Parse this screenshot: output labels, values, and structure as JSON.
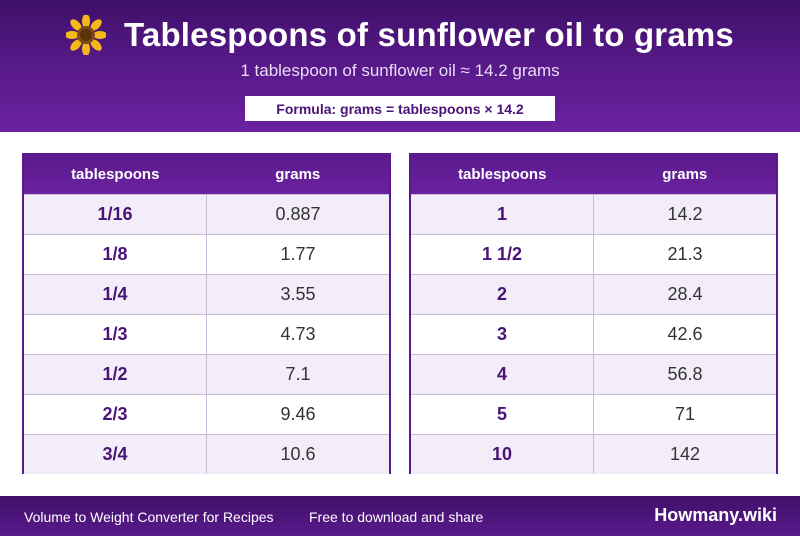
{
  "header": {
    "icon": "sunflower-icon",
    "title": "Tablespoons of sunflower oil to grams",
    "subtitle": "1 tablespoon of sunflower oil ≈ 14.2 grams",
    "formula": "Formula: grams = tablespoons × 14.2"
  },
  "tables": {
    "left": {
      "headers": [
        "tablespoons",
        "grams"
      ],
      "rows": [
        [
          "1/16",
          "0.887"
        ],
        [
          "1/8",
          "1.77"
        ],
        [
          "1/4",
          "3.55"
        ],
        [
          "1/3",
          "4.73"
        ],
        [
          "1/2",
          "7.1"
        ],
        [
          "2/3",
          "9.46"
        ],
        [
          "3/4",
          "10.6"
        ]
      ]
    },
    "right": {
      "headers": [
        "tablespoons",
        "grams"
      ],
      "rows": [
        [
          "1",
          "14.2"
        ],
        [
          "1 1/2",
          "21.3"
        ],
        [
          "2",
          "28.4"
        ],
        [
          "3",
          "42.6"
        ],
        [
          "4",
          "56.8"
        ],
        [
          "5",
          "71"
        ],
        [
          "10",
          "142"
        ]
      ]
    }
  },
  "footer": {
    "left_text": "Volume to Weight Converter for Recipes",
    "middle_text": "Free to download and share",
    "brand": "Howmany.wiki"
  },
  "colors": {
    "primary": "#5a1a8c",
    "dark": "#3f1068",
    "row_alt": "#f2edf8",
    "tbsp_text": "#4a1377"
  }
}
